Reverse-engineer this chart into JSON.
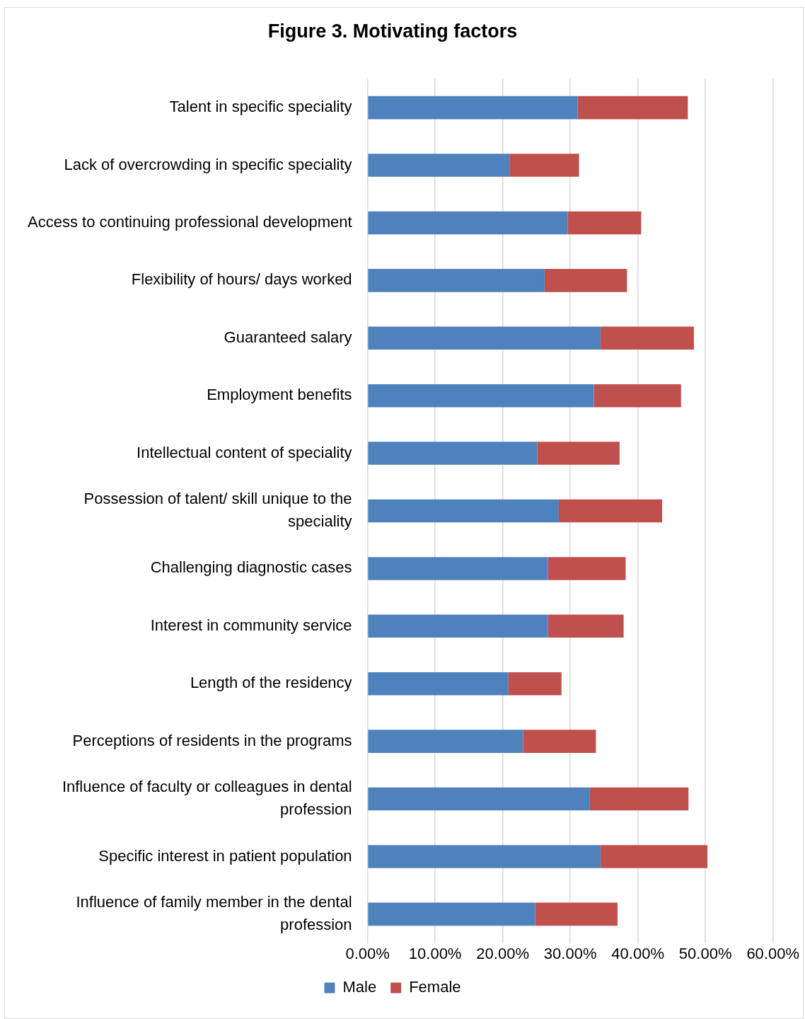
{
  "chart_data": {
    "type": "bar",
    "orientation": "horizontal",
    "stacked": true,
    "title": "Figure 3. Motivating factors",
    "categories": [
      "Talent in specific speciality",
      "Lack of overcrowding in specific speciality",
      "Access to continuing professional development",
      "Flexibility of hours/ days worked",
      "Guaranteed salary",
      "Employment benefits",
      "Intellectual content of speciality",
      "Possession of talent/ skill unique to the speciality",
      "Challenging diagnostic cases",
      "Interest in community service",
      "Length of the residency",
      "Perceptions of residents in the programs",
      "Influence of faculty or colleagues in dental profession",
      "Specific interest in patient population",
      "Influence of family member in the dental profession"
    ],
    "series": [
      {
        "name": "Male",
        "color": "#4f81bd",
        "values": [
          31.1,
          21.0,
          29.6,
          26.2,
          34.5,
          33.5,
          25.1,
          28.3,
          26.7,
          26.7,
          20.8,
          23.0,
          32.9,
          34.5,
          24.8
        ]
      },
      {
        "name": "Female",
        "color": "#c0504d",
        "values": [
          16.3,
          10.3,
          10.9,
          12.2,
          13.8,
          12.9,
          12.2,
          15.3,
          11.5,
          11.2,
          7.9,
          10.8,
          14.6,
          15.8,
          12.2
        ]
      }
    ],
    "xlim": [
      0,
      60
    ],
    "xticks": [
      {
        "value": 0,
        "label": "0.00%"
      },
      {
        "value": 10,
        "label": "10.00%"
      },
      {
        "value": 20,
        "label": "20.00%"
      },
      {
        "value": 30,
        "label": "30.00%"
      },
      {
        "value": 40,
        "label": "40.00%"
      },
      {
        "value": 50,
        "label": "50.00%"
      },
      {
        "value": 60,
        "label": "60.00%"
      }
    ],
    "grid": "x",
    "legend": "bottom"
  }
}
